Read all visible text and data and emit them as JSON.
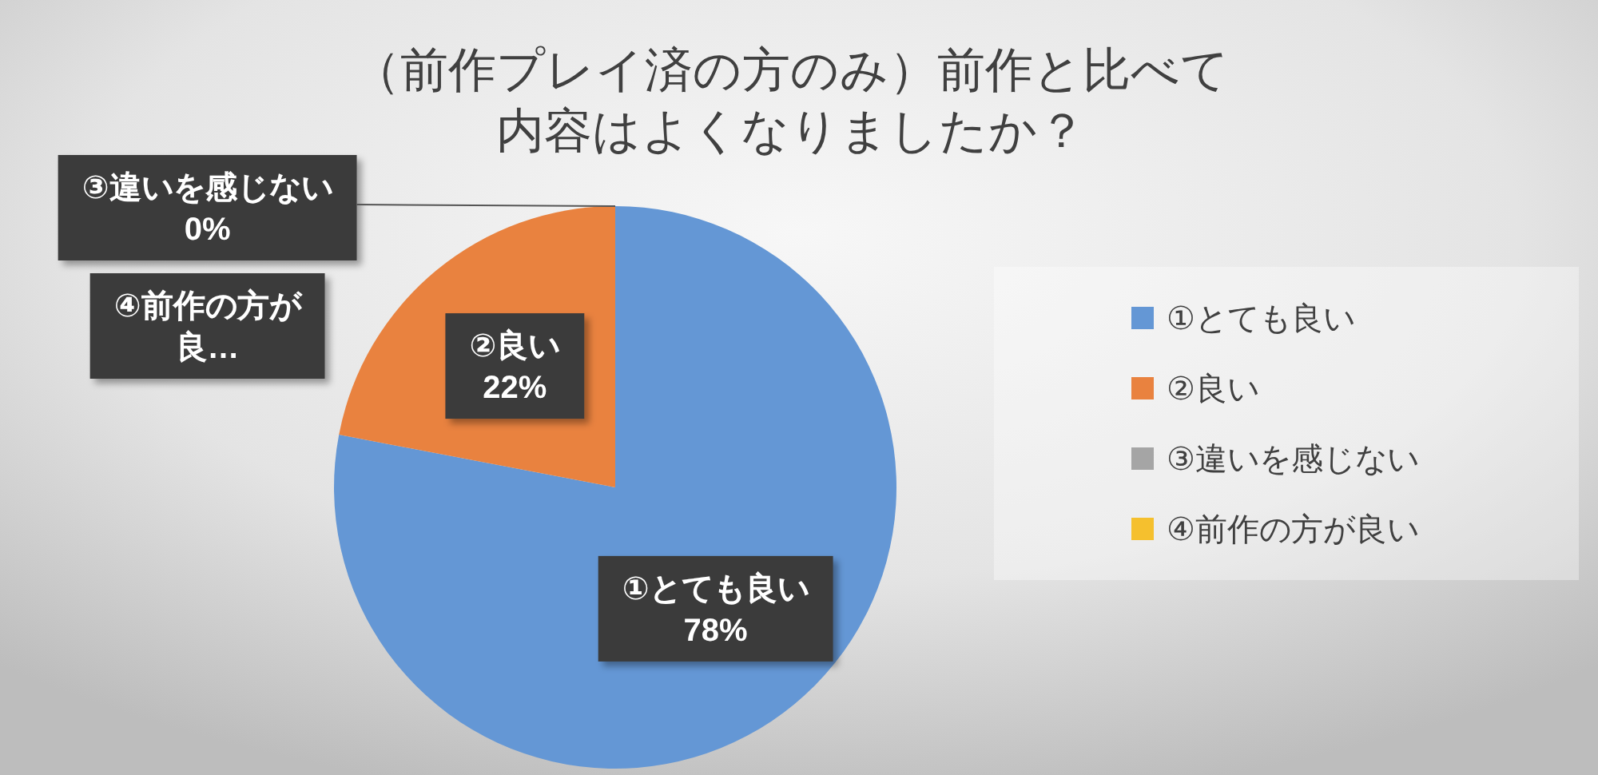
{
  "chart_data": {
    "type": "pie",
    "title": "（前作プレイ済の方のみ）前作と比べて内容はよくなりましたか？",
    "categories": [
      "①とても良い",
      "②良い",
      "③違いを感じない",
      "④前作の方が良い"
    ],
    "values": [
      78,
      22,
      0,
      0
    ],
    "colors": [
      "#6497d5",
      "#e9823f",
      "#a5a5a5",
      "#f5c02e"
    ],
    "value_labels": [
      "①とても良い\n78%",
      "②良い\n22%",
      "③違いを感じない\n0%",
      "④前作の方が良…"
    ],
    "legend": "right"
  }
}
